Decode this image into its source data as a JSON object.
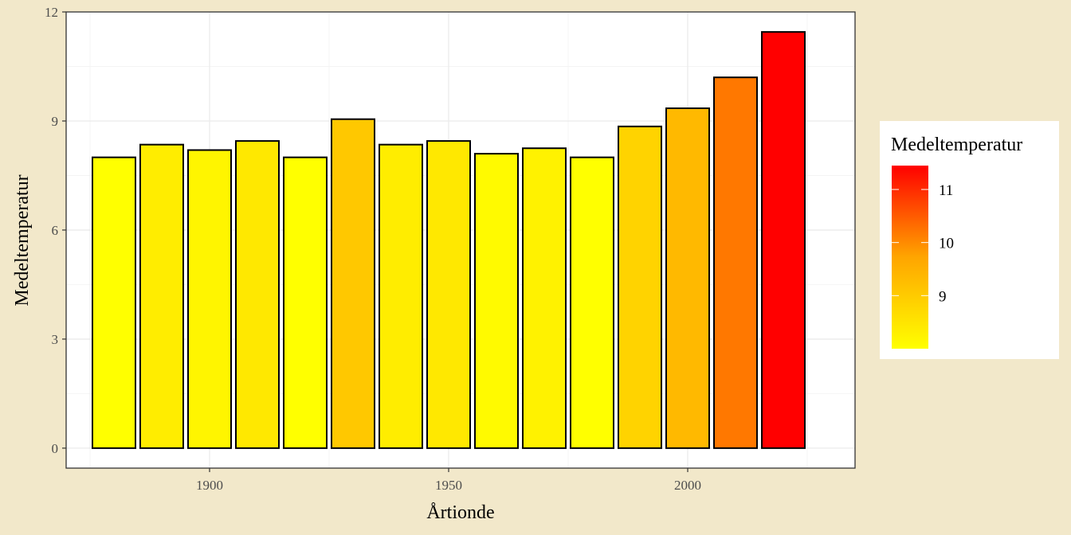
{
  "chart_data": {
    "type": "bar",
    "xlabel": "Årtionde",
    "ylabel": "Medeltemperatur",
    "x": [
      1880,
      1890,
      1900,
      1910,
      1920,
      1930,
      1940,
      1950,
      1960,
      1970,
      1980,
      1990,
      2000,
      2010,
      2020
    ],
    "values": [
      8.0,
      8.35,
      8.2,
      8.45,
      8.0,
      9.05,
      8.35,
      8.45,
      8.1,
      8.25,
      8.0,
      8.85,
      9.35,
      10.2,
      11.45
    ],
    "xlim": [
      1870,
      2035
    ],
    "ylim": [
      -0.55,
      12
    ],
    "x_ticks": [
      "1900",
      "1950",
      "2000"
    ],
    "y_ticks": [
      "0",
      "3",
      "6",
      "9",
      "12"
    ],
    "grid": true,
    "legend": {
      "title": "Medeltemperatur",
      "position": "right",
      "labels": [
        "9",
        "10",
        "11"
      ],
      "color_low": "#FFFF00",
      "color_mid": "#FFA500",
      "color_high": "#FF0000"
    }
  }
}
